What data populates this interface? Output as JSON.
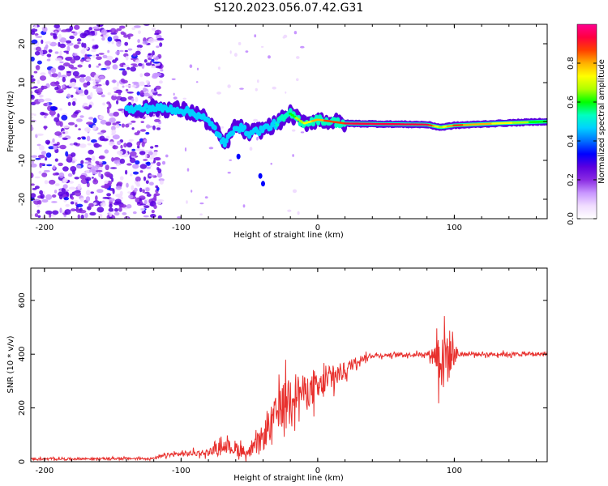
{
  "title": "S120.2023.056.07.42.G31",
  "colors": {
    "snr_line": "#e8312e",
    "colormap": [
      "#ffffff",
      "#f0dcff",
      "#c896ff",
      "#8a2be2",
      "#5a00e0",
      "#0000ff",
      "#0070ff",
      "#00d2ff",
      "#00ffc0",
      "#00ff00",
      "#b0ff00",
      "#ffff00",
      "#ffb000",
      "#ff4000",
      "#ff0040",
      "#ff0090"
    ]
  },
  "chart_data": [
    {
      "type": "heatmap",
      "name": "spectrogram",
      "xlabel": "Height of straight line (km)",
      "ylabel": "Frequency (Hz)",
      "xlim": [
        -210,
        168
      ],
      "ylim": [
        -25,
        25
      ],
      "xticks": [
        -200,
        -100,
        0,
        100
      ],
      "yticks": [
        -20,
        -10,
        0,
        10,
        20
      ],
      "colorbar": {
        "label": "Normalized spectral amplitude",
        "range": [
          0,
          1
        ],
        "ticks": [
          "0.0",
          "0.2",
          "0.4",
          "0.6",
          "0.8"
        ]
      },
      "noise_region": {
        "x_from": -210,
        "x_to": -120,
        "amplitude": 0.12
      },
      "signal_track": [
        {
          "x": -140,
          "f": 3,
          "amp": 0.2
        },
        {
          "x": -120,
          "f": 3.5,
          "amp": 0.4
        },
        {
          "x": -100,
          "f": 3,
          "amp": 0.45
        },
        {
          "x": -85,
          "f": 1.5,
          "amp": 0.5
        },
        {
          "x": -75,
          "f": -2,
          "amp": 0.4
        },
        {
          "x": -68,
          "f": -6,
          "amp": 0.3
        },
        {
          "x": -60,
          "f": -1,
          "amp": 0.3
        },
        {
          "x": -50,
          "f": -3,
          "amp": 0.35
        },
        {
          "x": -40,
          "f": -2,
          "amp": 0.4
        },
        {
          "x": -30,
          "f": -0.5,
          "amp": 0.5
        },
        {
          "x": -20,
          "f": 2,
          "amp": 0.6
        },
        {
          "x": -10,
          "f": -0.5,
          "amp": 0.75
        },
        {
          "x": 0,
          "f": 0.5,
          "amp": 0.85
        },
        {
          "x": 20,
          "f": -0.5,
          "amp": 0.95
        },
        {
          "x": 80,
          "f": -0.8,
          "amp": 1.0
        },
        {
          "x": 90,
          "f": -1.5,
          "amp": 0.7
        },
        {
          "x": 100,
          "f": -1,
          "amp": 0.9
        },
        {
          "x": 130,
          "f": -0.5,
          "amp": 0.8
        },
        {
          "x": 168,
          "f": 0,
          "amp": 0.6
        }
      ]
    },
    {
      "type": "line",
      "name": "snr",
      "xlabel": "Height of straight line (km)",
      "ylabel": "SNR (10 * v/v)",
      "xlim": [
        -210,
        168
      ],
      "ylim": [
        0,
        720
      ],
      "xticks": [
        -200,
        -100,
        0,
        100
      ],
      "yticks": [
        0,
        200,
        400,
        600
      ],
      "envelope": [
        {
          "x": -210,
          "mean": 10,
          "noise": 8
        },
        {
          "x": -120,
          "mean": 12,
          "noise": 8
        },
        {
          "x": -110,
          "mean": 25,
          "noise": 15
        },
        {
          "x": -80,
          "mean": 35,
          "noise": 25
        },
        {
          "x": -70,
          "mean": 60,
          "noise": 40
        },
        {
          "x": -60,
          "mean": 50,
          "noise": 60
        },
        {
          "x": -50,
          "mean": 30,
          "noise": 30
        },
        {
          "x": -40,
          "mean": 90,
          "noise": 100
        },
        {
          "x": -30,
          "mean": 180,
          "noise": 140
        },
        {
          "x": -20,
          "mean": 260,
          "noise": 160
        },
        {
          "x": -10,
          "mean": 260,
          "noise": 120
        },
        {
          "x": 0,
          "mean": 270,
          "noise": 110
        },
        {
          "x": 10,
          "mean": 310,
          "noise": 100
        },
        {
          "x": 20,
          "mean": 340,
          "noise": 60
        },
        {
          "x": 30,
          "mean": 380,
          "noise": 30
        },
        {
          "x": 40,
          "mean": 395,
          "noise": 15
        },
        {
          "x": 80,
          "mean": 400,
          "noise": 15
        },
        {
          "x": 85,
          "mean": 400,
          "noise": 60
        },
        {
          "x": 92,
          "mean": 400,
          "noise": 330
        },
        {
          "x": 100,
          "mean": 400,
          "noise": 80
        },
        {
          "x": 105,
          "mean": 400,
          "noise": 15
        },
        {
          "x": 168,
          "mean": 400,
          "noise": 15
        }
      ]
    }
  ]
}
